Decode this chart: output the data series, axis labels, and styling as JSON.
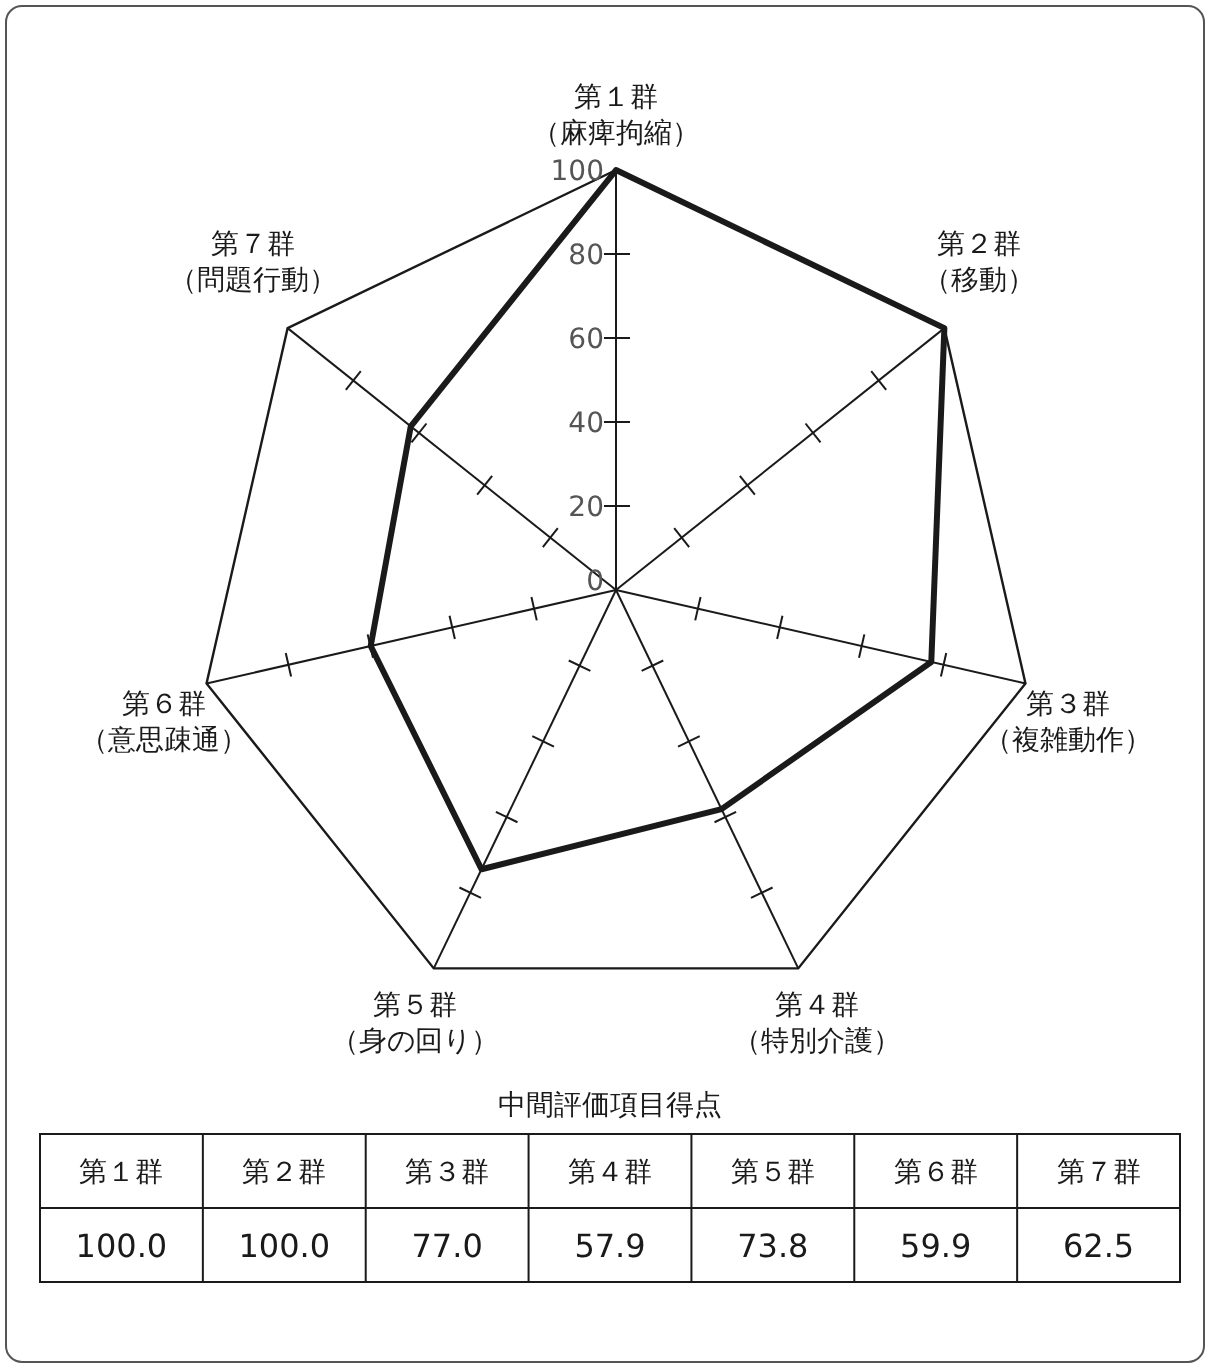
{
  "chart_data": [
    {
      "type": "radar",
      "categories": [
        "第１群（麻痺拘縮）",
        "第２群（移動）",
        "第３群（複雑動作）",
        "第４群（特別介護）",
        "第５群（身の回り）",
        "第６群（意思疎通）",
        "第７群（問題行動）"
      ],
      "series": [
        {
          "color": "#1a1a1a",
          "values": [
            100.0,
            100.0,
            77.0,
            57.9,
            73.8,
            59.9,
            62.5
          ]
        }
      ],
      "ylim": [
        0,
        100
      ],
      "yticks": [
        0,
        20,
        40,
        60,
        80,
        100
      ],
      "grid": false
    },
    {
      "type": "other",
      "title": "中間評価項目得点",
      "categories": [
        "第１群",
        "第２群",
        "第３群",
        "第４群",
        "第５群",
        "第６群",
        "第７群"
      ],
      "value_labels": [
        "100.0",
        "100.0",
        "77.0",
        "57.9",
        "73.8",
        "59.9",
        "62.5"
      ]
    }
  ]
}
